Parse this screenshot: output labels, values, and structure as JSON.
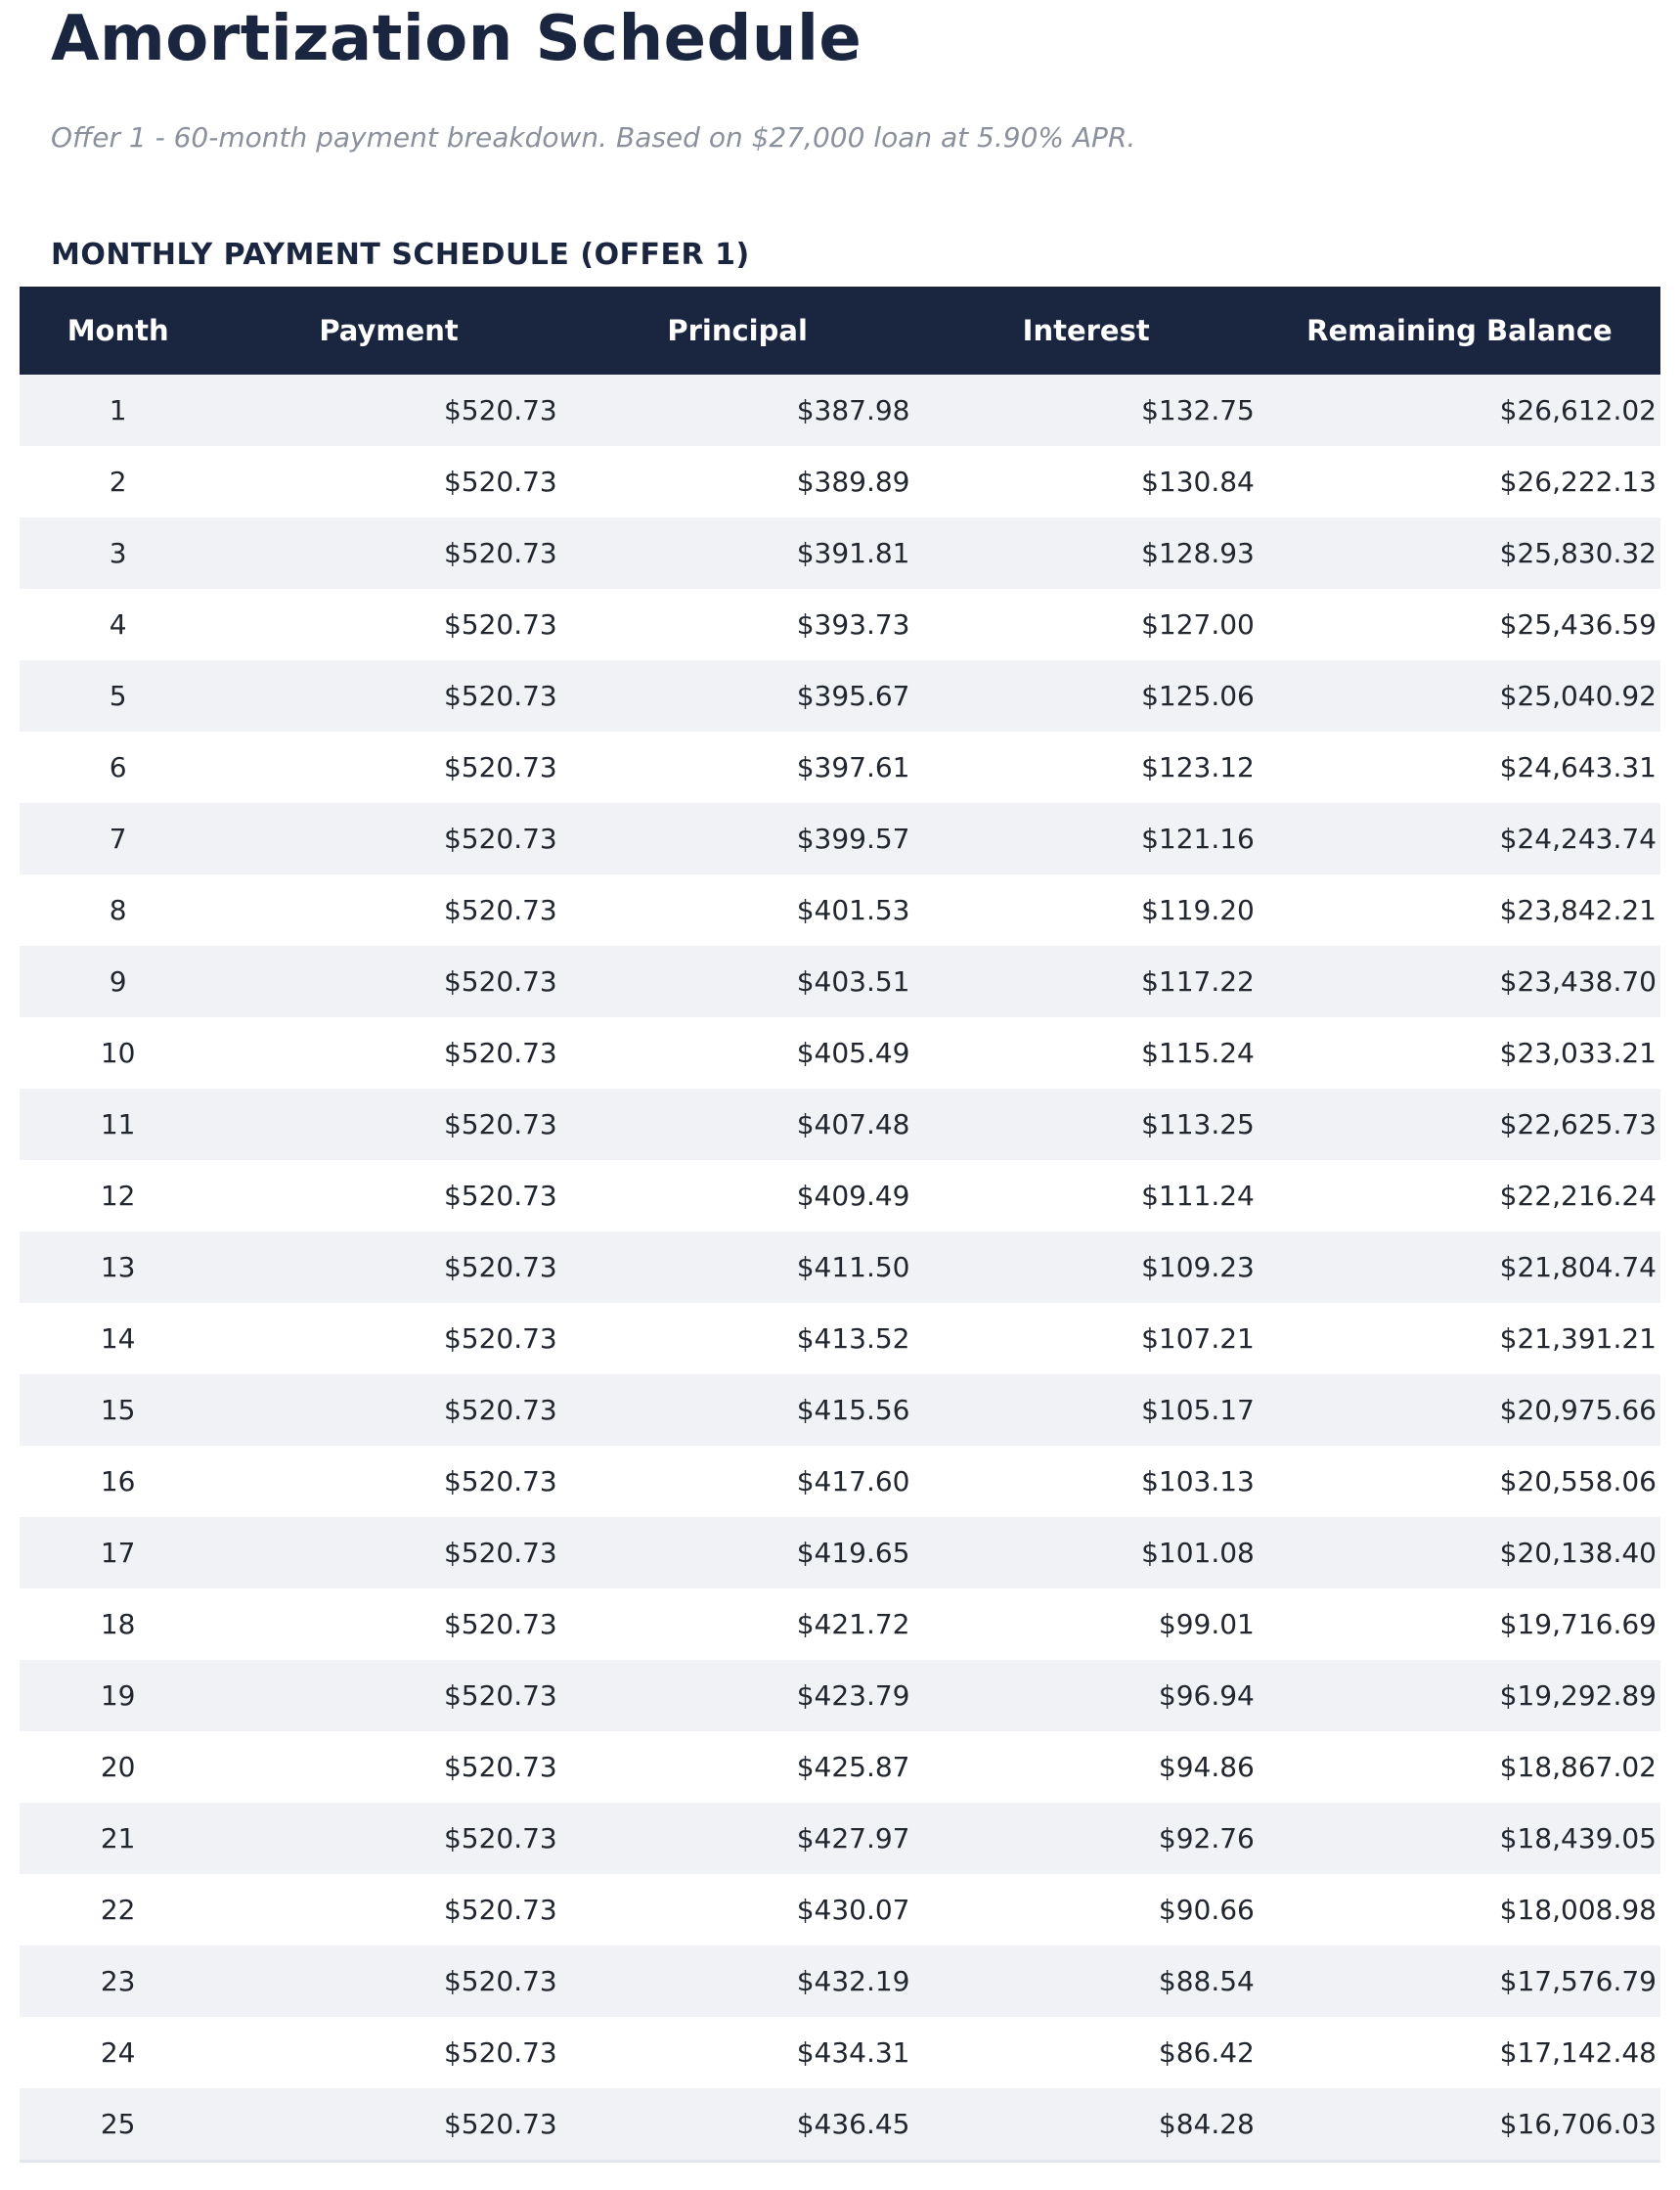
{
  "page": {
    "title": "Amortization Schedule",
    "subtitle": "Offer 1 - 60-month payment breakdown. Based on $27,000 loan at 5.90% APR.",
    "section_title": "MONTHLY PAYMENT SCHEDULE (OFFER 1)"
  },
  "colors": {
    "header_navy": "#1a2540",
    "title_navy": "#1a2540",
    "row_stripe": "#f1f2f6",
    "subtitle_gray": "#8b919c",
    "body_text": "#21262f",
    "table_bottom_border": "#e4e6ed"
  },
  "table": {
    "columns": [
      "Month",
      "Payment",
      "Principal",
      "Interest",
      "Remaining Balance"
    ],
    "rows": [
      {
        "month": "1",
        "payment": "$520.73",
        "principal": "$387.98",
        "interest": "$132.75",
        "balance": "$26,612.02"
      },
      {
        "month": "2",
        "payment": "$520.73",
        "principal": "$389.89",
        "interest": "$130.84",
        "balance": "$26,222.13"
      },
      {
        "month": "3",
        "payment": "$520.73",
        "principal": "$391.81",
        "interest": "$128.93",
        "balance": "$25,830.32"
      },
      {
        "month": "4",
        "payment": "$520.73",
        "principal": "$393.73",
        "interest": "$127.00",
        "balance": "$25,436.59"
      },
      {
        "month": "5",
        "payment": "$520.73",
        "principal": "$395.67",
        "interest": "$125.06",
        "balance": "$25,040.92"
      },
      {
        "month": "6",
        "payment": "$520.73",
        "principal": "$397.61",
        "interest": "$123.12",
        "balance": "$24,643.31"
      },
      {
        "month": "7",
        "payment": "$520.73",
        "principal": "$399.57",
        "interest": "$121.16",
        "balance": "$24,243.74"
      },
      {
        "month": "8",
        "payment": "$520.73",
        "principal": "$401.53",
        "interest": "$119.20",
        "balance": "$23,842.21"
      },
      {
        "month": "9",
        "payment": "$520.73",
        "principal": "$403.51",
        "interest": "$117.22",
        "balance": "$23,438.70"
      },
      {
        "month": "10",
        "payment": "$520.73",
        "principal": "$405.49",
        "interest": "$115.24",
        "balance": "$23,033.21"
      },
      {
        "month": "11",
        "payment": "$520.73",
        "principal": "$407.48",
        "interest": "$113.25",
        "balance": "$22,625.73"
      },
      {
        "month": "12",
        "payment": "$520.73",
        "principal": "$409.49",
        "interest": "$111.24",
        "balance": "$22,216.24"
      },
      {
        "month": "13",
        "payment": "$520.73",
        "principal": "$411.50",
        "interest": "$109.23",
        "balance": "$21,804.74"
      },
      {
        "month": "14",
        "payment": "$520.73",
        "principal": "$413.52",
        "interest": "$107.21",
        "balance": "$21,391.21"
      },
      {
        "month": "15",
        "payment": "$520.73",
        "principal": "$415.56",
        "interest": "$105.17",
        "balance": "$20,975.66"
      },
      {
        "month": "16",
        "payment": "$520.73",
        "principal": "$417.60",
        "interest": "$103.13",
        "balance": "$20,558.06"
      },
      {
        "month": "17",
        "payment": "$520.73",
        "principal": "$419.65",
        "interest": "$101.08",
        "balance": "$20,138.40"
      },
      {
        "month": "18",
        "payment": "$520.73",
        "principal": "$421.72",
        "interest": "$99.01",
        "balance": "$19,716.69"
      },
      {
        "month": "19",
        "payment": "$520.73",
        "principal": "$423.79",
        "interest": "$96.94",
        "balance": "$19,292.89"
      },
      {
        "month": "20",
        "payment": "$520.73",
        "principal": "$425.87",
        "interest": "$94.86",
        "balance": "$18,867.02"
      },
      {
        "month": "21",
        "payment": "$520.73",
        "principal": "$427.97",
        "interest": "$92.76",
        "balance": "$18,439.05"
      },
      {
        "month": "22",
        "payment": "$520.73",
        "principal": "$430.07",
        "interest": "$90.66",
        "balance": "$18,008.98"
      },
      {
        "month": "23",
        "payment": "$520.73",
        "principal": "$432.19",
        "interest": "$88.54",
        "balance": "$17,576.79"
      },
      {
        "month": "24",
        "payment": "$520.73",
        "principal": "$434.31",
        "interest": "$86.42",
        "balance": "$17,142.48"
      },
      {
        "month": "25",
        "payment": "$520.73",
        "principal": "$436.45",
        "interest": "$84.28",
        "balance": "$16,706.03"
      }
    ]
  }
}
